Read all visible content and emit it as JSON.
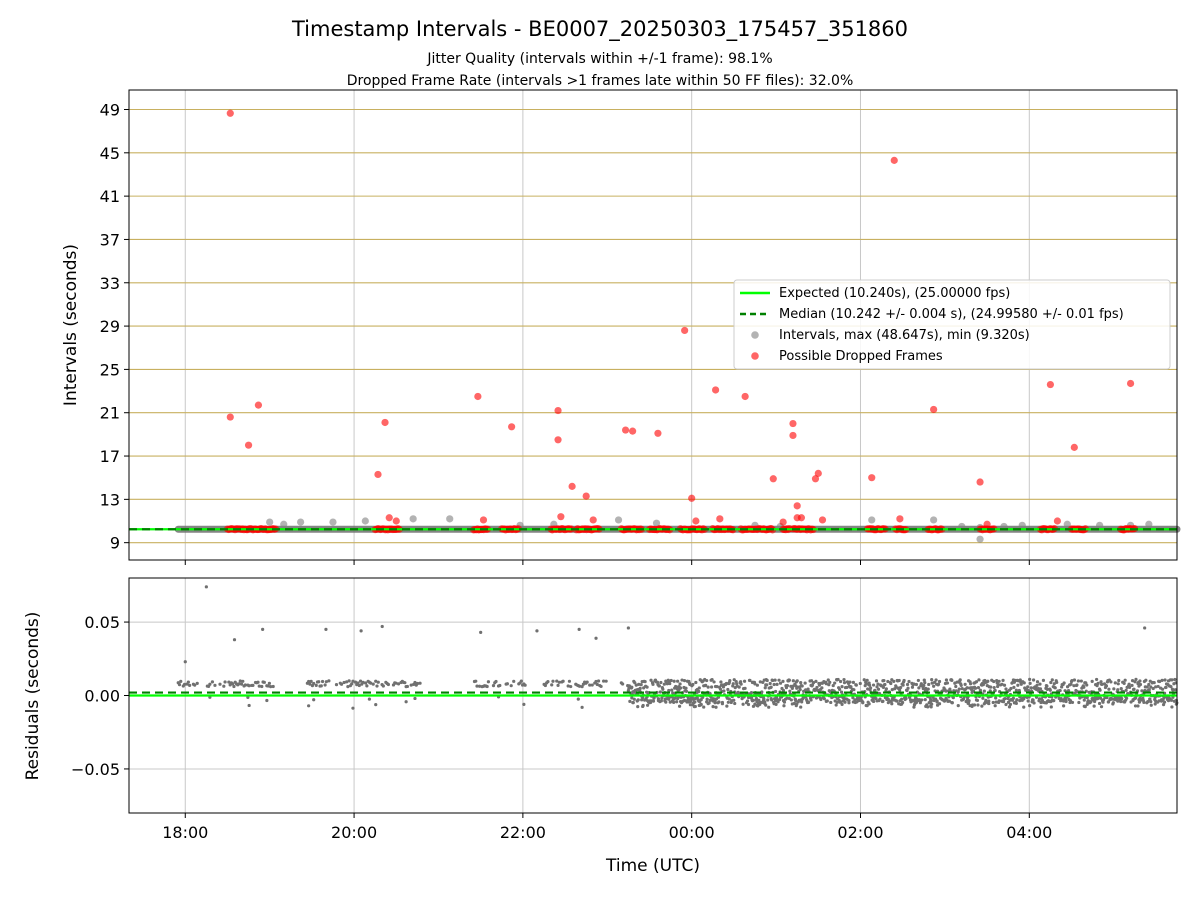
{
  "chart_data": [
    {
      "type": "scatter",
      "title": "Timestamp Intervals - BE0007_20250303_175457_351860",
      "subtitle_lines": [
        "Jitter Quality (intervals within +/-1 frame): 98.1%",
        "Dropped Frame Rate (intervals >1 frames late within 50 FF files): 32.0%"
      ],
      "xlabel": "",
      "ylabel": "Intervals (seconds)",
      "x_axis_type": "time",
      "xlim": [
        "17:20",
        "05:45"
      ],
      "ylim": [
        7.4,
        50.8
      ],
      "yticks": [
        9,
        13,
        17,
        21,
        25,
        29,
        33,
        37,
        41,
        45,
        49
      ],
      "grid": true,
      "grid_color_y": "#c8b060",
      "legend_position": "center-right",
      "legend": [
        {
          "label": "Expected (10.240s), (25.00000 fps)",
          "style": "solid-line",
          "color": "#00ff00"
        },
        {
          "label": "Median (10.242 +/- 0.004 s), (24.99580 +/- 0.01 fps)",
          "style": "dashed-line",
          "color": "#008000"
        },
        {
          "label": "Intervals, max (48.647s), min (9.320s)",
          "style": "marker",
          "color": "#808080"
        },
        {
          "label": "Possible Dropped Frames",
          "style": "marker",
          "color": "#ff0000"
        }
      ],
      "expected_interval": 10.24,
      "median_interval": 10.242,
      "baseline_time_range": [
        "17:55",
        "05:45"
      ],
      "series": [
        {
          "name": "Intervals, max (48.647s), min (9.320s)",
          "color": "#808080",
          "points": [
            [
              "19:00",
              10.9
            ],
            [
              "19:10",
              10.7
            ],
            [
              "19:22",
              10.9
            ],
            [
              "19:45",
              10.9
            ],
            [
              "20:08",
              11.0
            ],
            [
              "20:42",
              11.2
            ],
            [
              "21:08",
              11.2
            ],
            [
              "21:58",
              10.6
            ],
            [
              "22:22",
              10.7
            ],
            [
              "23:08",
              11.1
            ],
            [
              "23:35",
              10.8
            ],
            [
              "00:45",
              10.6
            ],
            [
              "01:03",
              10.5
            ],
            [
              "02:08",
              11.1
            ],
            [
              "02:52",
              11.1
            ],
            [
              "03:12",
              10.5
            ],
            [
              "03:25",
              10.4
            ],
            [
              "03:42",
              10.5
            ],
            [
              "03:55",
              10.6
            ],
            [
              "04:27",
              10.7
            ],
            [
              "04:50",
              10.6
            ],
            [
              "05:12",
              10.6
            ],
            [
              "05:25",
              10.7
            ],
            [
              "03:25",
              9.32
            ]
          ]
        },
        {
          "name": "Possible Dropped Frames",
          "color": "#ff0000",
          "points": [
            [
              "18:32",
              48.65
            ],
            [
              "18:32",
              20.6
            ],
            [
              "18:45",
              18.0
            ],
            [
              "18:52",
              21.7
            ],
            [
              "20:17",
              15.3
            ],
            [
              "20:22",
              20.1
            ],
            [
              "20:25",
              11.3
            ],
            [
              "20:30",
              11.0
            ],
            [
              "21:28",
              22.5
            ],
            [
              "21:32",
              11.1
            ],
            [
              "21:52",
              19.7
            ],
            [
              "22:25",
              21.2
            ],
            [
              "22:25",
              18.5
            ],
            [
              "22:27",
              11.4
            ],
            [
              "22:35",
              14.2
            ],
            [
              "22:45",
              13.3
            ],
            [
              "22:50",
              11.1
            ],
            [
              "23:13",
              19.4
            ],
            [
              "23:18",
              19.3
            ],
            [
              "23:36",
              19.1
            ],
            [
              "23:55",
              28.6
            ],
            [
              "00:00",
              13.1
            ],
            [
              "00:03",
              11.0
            ],
            [
              "00:17",
              23.1
            ],
            [
              "00:20",
              11.2
            ],
            [
              "00:38",
              22.5
            ],
            [
              "00:58",
              14.9
            ],
            [
              "01:05",
              10.9
            ],
            [
              "01:12",
              20.0
            ],
            [
              "01:12",
              18.9
            ],
            [
              "01:15",
              12.4
            ],
            [
              "01:15",
              11.3
            ],
            [
              "01:18",
              11.3
            ],
            [
              "01:28",
              14.9
            ],
            [
              "01:30",
              15.4
            ],
            [
              "01:33",
              11.1
            ],
            [
              "02:08",
              15.0
            ],
            [
              "02:24",
              44.3
            ],
            [
              "02:28",
              11.2
            ],
            [
              "02:52",
              21.3
            ],
            [
              "03:25",
              14.6
            ],
            [
              "03:30",
              10.7
            ],
            [
              "04:15",
              23.6
            ],
            [
              "04:20",
              11.0
            ],
            [
              "04:32",
              17.8
            ],
            [
              "05:12",
              23.7
            ]
          ],
          "dense_clusters_at_10_24": [
            [
              "18:30",
              "19:05"
            ],
            [
              "20:15",
              "20:33"
            ],
            [
              "21:25",
              "21:35"
            ],
            [
              "21:45",
              "21:57"
            ],
            [
              "22:20",
              "22:35"
            ],
            [
              "22:38",
              "22:55"
            ],
            [
              "23:10",
              "23:25"
            ],
            [
              "23:30",
              "23:45"
            ],
            [
              "23:52",
              "00:10"
            ],
            [
              "00:15",
              "00:30"
            ],
            [
              "00:35",
              "00:58"
            ],
            [
              "01:05",
              "01:10"
            ],
            [
              "01:12",
              "01:27"
            ],
            [
              "02:05",
              "02:18"
            ],
            [
              "02:25",
              "02:33"
            ],
            [
              "02:48",
              "02:58"
            ],
            [
              "03:25",
              "03:35"
            ],
            [
              "04:08",
              "04:18"
            ],
            [
              "04:30",
              "04:40"
            ],
            [
              "05:05",
              "05:15"
            ]
          ]
        }
      ]
    },
    {
      "type": "scatter",
      "title": "",
      "xlabel": "Time (UTC)",
      "ylabel": "Residuals (seconds)",
      "x_axis_type": "time",
      "xlim": [
        "17:20",
        "05:45"
      ],
      "ylim": [
        -0.08,
        0.08
      ],
      "yticks": [
        -0.05,
        0.0,
        0.05
      ],
      "ytick_labels": [
        "−0.05",
        "0.00",
        "0.05"
      ],
      "xticks": [
        "18:00",
        "20:00",
        "22:00",
        "00:00",
        "02:00",
        "04:00"
      ],
      "grid": true,
      "expected_residual": 0.0,
      "median_residual": 0.002,
      "series": [
        {
          "name": "",
          "color": "#707070",
          "outliers": [
            [
              "18:00",
              0.023
            ],
            [
              "18:15",
              0.074
            ],
            [
              "18:35",
              0.038
            ],
            [
              "18:55",
              0.045
            ],
            [
              "19:40",
              0.045
            ],
            [
              "20:05",
              0.044
            ],
            [
              "20:20",
              0.047
            ],
            [
              "21:30",
              0.043
            ],
            [
              "22:10",
              0.044
            ],
            [
              "22:40",
              0.045
            ],
            [
              "22:52",
              0.039
            ],
            [
              "23:15",
              0.046
            ],
            [
              "05:22",
              0.046
            ]
          ],
          "bands": [
            {
              "from": "17:55",
              "to": "23:15",
              "center": 0.008,
              "spread": 0.002,
              "lower_scatter": -0.009,
              "density": "sparse"
            },
            {
              "from": "23:15",
              "to": "05:45",
              "center": 0.003,
              "spread": 0.008,
              "lower_scatter": -0.008,
              "density": "dense"
            }
          ]
        }
      ]
    }
  ]
}
